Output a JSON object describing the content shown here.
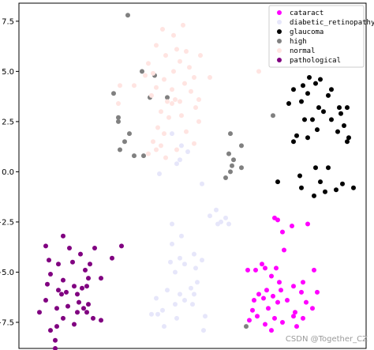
{
  "chart_data": {
    "type": "scatter",
    "title": "",
    "xlabel": "",
    "ylabel": "",
    "xlim": [
      -10,
      12
    ],
    "ylim": [
      -8.8,
      8.4
    ],
    "x_ticks": [],
    "y_ticks": [
      7.5,
      5.0,
      2.5,
      0.0,
      -2.5,
      -5.0,
      -7.5
    ],
    "y_tick_labels": [
      "7.5",
      "5.0",
      "2.5",
      "0.0",
      "−2.5",
      "−5.0",
      "−7.5"
    ],
    "legend_position": "top-right",
    "series": [
      {
        "name": "cataract",
        "color": "#ff00ff",
        "points": [
          [
            6.2,
            -2.3
          ],
          [
            6.4,
            -2.4
          ],
          [
            7.3,
            -2.7
          ],
          [
            8.3,
            -2.6
          ],
          [
            6.7,
            -3.0
          ],
          [
            6.8,
            -3.9
          ],
          [
            5.4,
            -4.6
          ],
          [
            5.6,
            -4.8
          ],
          [
            6.3,
            -4.8
          ],
          [
            5.0,
            -4.9
          ],
          [
            4.5,
            -4.9
          ],
          [
            8.7,
            -4.9
          ],
          [
            6.0,
            -5.2
          ],
          [
            6.5,
            -5.5
          ],
          [
            8.0,
            -5.5
          ],
          [
            7.4,
            -5.7
          ],
          [
            5.7,
            -5.9
          ],
          [
            6.6,
            -5.9
          ],
          [
            7.9,
            -6.0
          ],
          [
            8.9,
            -6.0
          ],
          [
            5.2,
            -6.1
          ],
          [
            6.1,
            -6.2
          ],
          [
            5.5,
            -6.3
          ],
          [
            4.9,
            -6.4
          ],
          [
            7.0,
            -6.4
          ],
          [
            6.4,
            -6.5
          ],
          [
            8.2,
            -6.5
          ],
          [
            5.8,
            -6.8
          ],
          [
            4.8,
            -6.9
          ],
          [
            7.5,
            -7.0
          ],
          [
            8.6,
            -6.8
          ],
          [
            5.1,
            -7.2
          ],
          [
            6.2,
            -7.3
          ],
          [
            7.4,
            -7.2
          ],
          [
            8.0,
            -7.3
          ],
          [
            4.6,
            -7.4
          ],
          [
            6.7,
            -7.5
          ],
          [
            5.6,
            -7.6
          ],
          [
            7.6,
            -7.7
          ],
          [
            6.0,
            -7.9
          ]
        ]
      },
      {
        "name": "diabetic_retinopathy",
        "color": "#e6e6fa",
        "points": [
          [
            -0.3,
            1.9
          ],
          [
            0.3,
            1.3
          ],
          [
            0.7,
            1.0
          ],
          [
            0.2,
            0.6
          ],
          [
            0.0,
            0.4
          ],
          [
            -1.1,
            -0.1
          ],
          [
            1.6,
            -0.6
          ],
          [
            2.5,
            -1.9
          ],
          [
            2.1,
            -2.2
          ],
          [
            3.1,
            -2.3
          ],
          [
            2.8,
            -2.5
          ],
          [
            3.3,
            -2.6
          ],
          [
            2.6,
            -2.6
          ],
          [
            -0.3,
            -2.6
          ],
          [
            0.3,
            -3.2
          ],
          [
            -0.3,
            -3.6
          ],
          [
            1.1,
            -4.1
          ],
          [
            0.2,
            -4.3
          ],
          [
            1.6,
            -4.4
          ],
          [
            -0.4,
            -4.5
          ],
          [
            0.5,
            -4.6
          ],
          [
            1.2,
            -4.8
          ],
          [
            -0.1,
            -5.0
          ],
          [
            1.3,
            -5.5
          ],
          [
            0.9,
            -5.8
          ],
          [
            -0.6,
            -5.9
          ],
          [
            0.2,
            -6.1
          ],
          [
            1.1,
            -6.1
          ],
          [
            -1.3,
            -6.3
          ],
          [
            0.5,
            -6.4
          ],
          [
            -0.1,
            -6.6
          ],
          [
            1.0,
            -6.6
          ],
          [
            -0.9,
            -6.9
          ],
          [
            -1.6,
            -7.1
          ],
          [
            -1.2,
            -7.1
          ],
          [
            1.8,
            -7.2
          ],
          [
            0.0,
            -7.3
          ],
          [
            -0.8,
            -7.7
          ],
          [
            1.7,
            -7.9
          ]
        ]
      },
      {
        "name": "glaucoma",
        "color": "#000000",
        "points": [
          [
            8.4,
            4.7
          ],
          [
            9.1,
            4.6
          ],
          [
            8.8,
            4.4
          ],
          [
            8.0,
            4.3
          ],
          [
            7.4,
            4.1
          ],
          [
            9.8,
            4.1
          ],
          [
            8.3,
            3.9
          ],
          [
            9.6,
            3.8
          ],
          [
            7.9,
            3.5
          ],
          [
            7.1,
            3.4
          ],
          [
            9.0,
            3.2
          ],
          [
            10.3,
            3.2
          ],
          [
            10.8,
            3.2
          ],
          [
            9.3,
            3.0
          ],
          [
            10.4,
            2.9
          ],
          [
            8.1,
            2.6
          ],
          [
            8.6,
            2.6
          ],
          [
            9.8,
            2.6
          ],
          [
            10.6,
            2.3
          ],
          [
            8.9,
            2.1
          ],
          [
            10.2,
            2.0
          ],
          [
            7.6,
            1.8
          ],
          [
            8.3,
            1.7
          ],
          [
            10.9,
            1.7
          ],
          [
            7.4,
            1.5
          ],
          [
            10.8,
            1.5
          ],
          [
            8.8,
            0.2
          ],
          [
            9.6,
            0.2
          ],
          [
            7.8,
            -0.2
          ],
          [
            6.4,
            -0.5
          ],
          [
            9.1,
            -0.5
          ],
          [
            10.5,
            -0.6
          ],
          [
            7.9,
            -0.8
          ],
          [
            10.1,
            -0.9
          ],
          [
            11.2,
            -0.8
          ],
          [
            9.4,
            -1.0
          ],
          [
            8.7,
            -1.2
          ]
        ]
      },
      {
        "name": "high",
        "color": "#808080",
        "points": [
          [
            -3.1,
            7.8
          ],
          [
            -2.2,
            5.0
          ],
          [
            -1.4,
            4.8
          ],
          [
            -4.0,
            3.9
          ],
          [
            -1.7,
            3.7
          ],
          [
            -0.6,
            3.7
          ],
          [
            -3.7,
            2.7
          ],
          [
            -3.7,
            2.5
          ],
          [
            6.1,
            2.8
          ],
          [
            -3.0,
            1.9
          ],
          [
            3.4,
            1.9
          ],
          [
            -3.3,
            1.5
          ],
          [
            4.1,
            1.3
          ],
          [
            -3.6,
            1.1
          ],
          [
            -2.7,
            0.8
          ],
          [
            -2.1,
            0.8
          ],
          [
            3.3,
            0.9
          ],
          [
            3.6,
            0.6
          ],
          [
            3.5,
            0.3
          ],
          [
            4.1,
            0.2
          ],
          [
            3.4,
            0.0
          ],
          [
            3.1,
            -0.3
          ],
          [
            4.4,
            -7.7
          ]
        ]
      },
      {
        "name": "normal",
        "color": "#ffe4e1",
        "points": [
          [
            -0.9,
            7.1
          ],
          [
            0.4,
            7.3
          ],
          [
            -0.2,
            6.8
          ],
          [
            -1.3,
            6.3
          ],
          [
            0.0,
            6.1
          ],
          [
            0.6,
            6.0
          ],
          [
            1.5,
            5.8
          ],
          [
            -0.7,
            5.8
          ],
          [
            0.2,
            5.5
          ],
          [
            -1.8,
            5.4
          ],
          [
            0.8,
            5.2
          ],
          [
            -0.2,
            5.0
          ],
          [
            -1.5,
            4.9
          ],
          [
            1.1,
            4.7
          ],
          [
            -2.0,
            4.8
          ],
          [
            2.1,
            4.7
          ],
          [
            -0.8,
            4.6
          ],
          [
            0.5,
            4.4
          ],
          [
            -3.6,
            4.3
          ],
          [
            -2.7,
            4.3
          ],
          [
            -1.3,
            4.2
          ],
          [
            -0.3,
            4.1
          ],
          [
            0.9,
            4.0
          ],
          [
            -1.6,
            3.8
          ],
          [
            -0.1,
            3.6
          ],
          [
            1.4,
            3.6
          ],
          [
            -0.6,
            3.5
          ],
          [
            0.2,
            3.5
          ],
          [
            -3.7,
            3.4
          ],
          [
            -0.3,
            3.4
          ],
          [
            1.2,
            3.2
          ],
          [
            -1.0,
            3.0
          ],
          [
            0.3,
            2.8
          ],
          [
            -0.5,
            2.7
          ],
          [
            1.4,
            2.5
          ],
          [
            -1.2,
            2.2
          ],
          [
            0.6,
            2.0
          ],
          [
            -0.8,
            1.9
          ],
          [
            -1.5,
            1.5
          ],
          [
            1.1,
            1.4
          ],
          [
            -1.0,
            1.3
          ],
          [
            -1.3,
            1.1
          ],
          [
            0.0,
            1.1
          ],
          [
            -1.8,
            0.9
          ],
          [
            -0.7,
            0.7
          ],
          [
            5.2,
            5.0
          ]
        ]
      },
      {
        "name": "pathological",
        "color": "#800080",
        "points": [
          [
            -7.2,
            -3.2
          ],
          [
            -8.3,
            -3.7
          ],
          [
            -6.8,
            -3.8
          ],
          [
            -5.2,
            -3.8
          ],
          [
            -6.1,
            -4.1
          ],
          [
            -4.1,
            -4.3
          ],
          [
            -3.5,
            -3.7
          ],
          [
            -8.1,
            -4.4
          ],
          [
            -7.5,
            -4.6
          ],
          [
            -6.6,
            -4.5
          ],
          [
            -5.5,
            -4.6
          ],
          [
            -5.8,
            -4.9
          ],
          [
            -8.0,
            -5.1
          ],
          [
            -4.8,
            -5.3
          ],
          [
            -7.2,
            -5.4
          ],
          [
            -5.6,
            -5.3
          ],
          [
            -8.2,
            -5.6
          ],
          [
            -6.5,
            -5.7
          ],
          [
            -6.0,
            -5.8
          ],
          [
            -5.7,
            -5.7
          ],
          [
            -7.5,
            -5.9
          ],
          [
            -7.0,
            -6.0
          ],
          [
            -7.3,
            -6.1
          ],
          [
            -6.3,
            -6.1
          ],
          [
            -8.3,
            -6.4
          ],
          [
            -6.2,
            -6.5
          ],
          [
            -5.6,
            -6.6
          ],
          [
            -6.9,
            -6.7
          ],
          [
            -5.9,
            -6.8
          ],
          [
            -7.6,
            -6.8
          ],
          [
            -5.7,
            -7.0
          ],
          [
            -8.7,
            -7.0
          ],
          [
            -6.3,
            -7.0
          ],
          [
            -5.3,
            -7.3
          ],
          [
            -7.2,
            -7.3
          ],
          [
            -4.8,
            -7.4
          ],
          [
            -6.5,
            -7.6
          ],
          [
            -7.6,
            -7.7
          ],
          [
            -8.0,
            -7.9
          ],
          [
            -7.7,
            -8.4
          ],
          [
            -7.7,
            -8.8
          ]
        ]
      }
    ]
  },
  "watermark": "CSDN @Together_CZ"
}
